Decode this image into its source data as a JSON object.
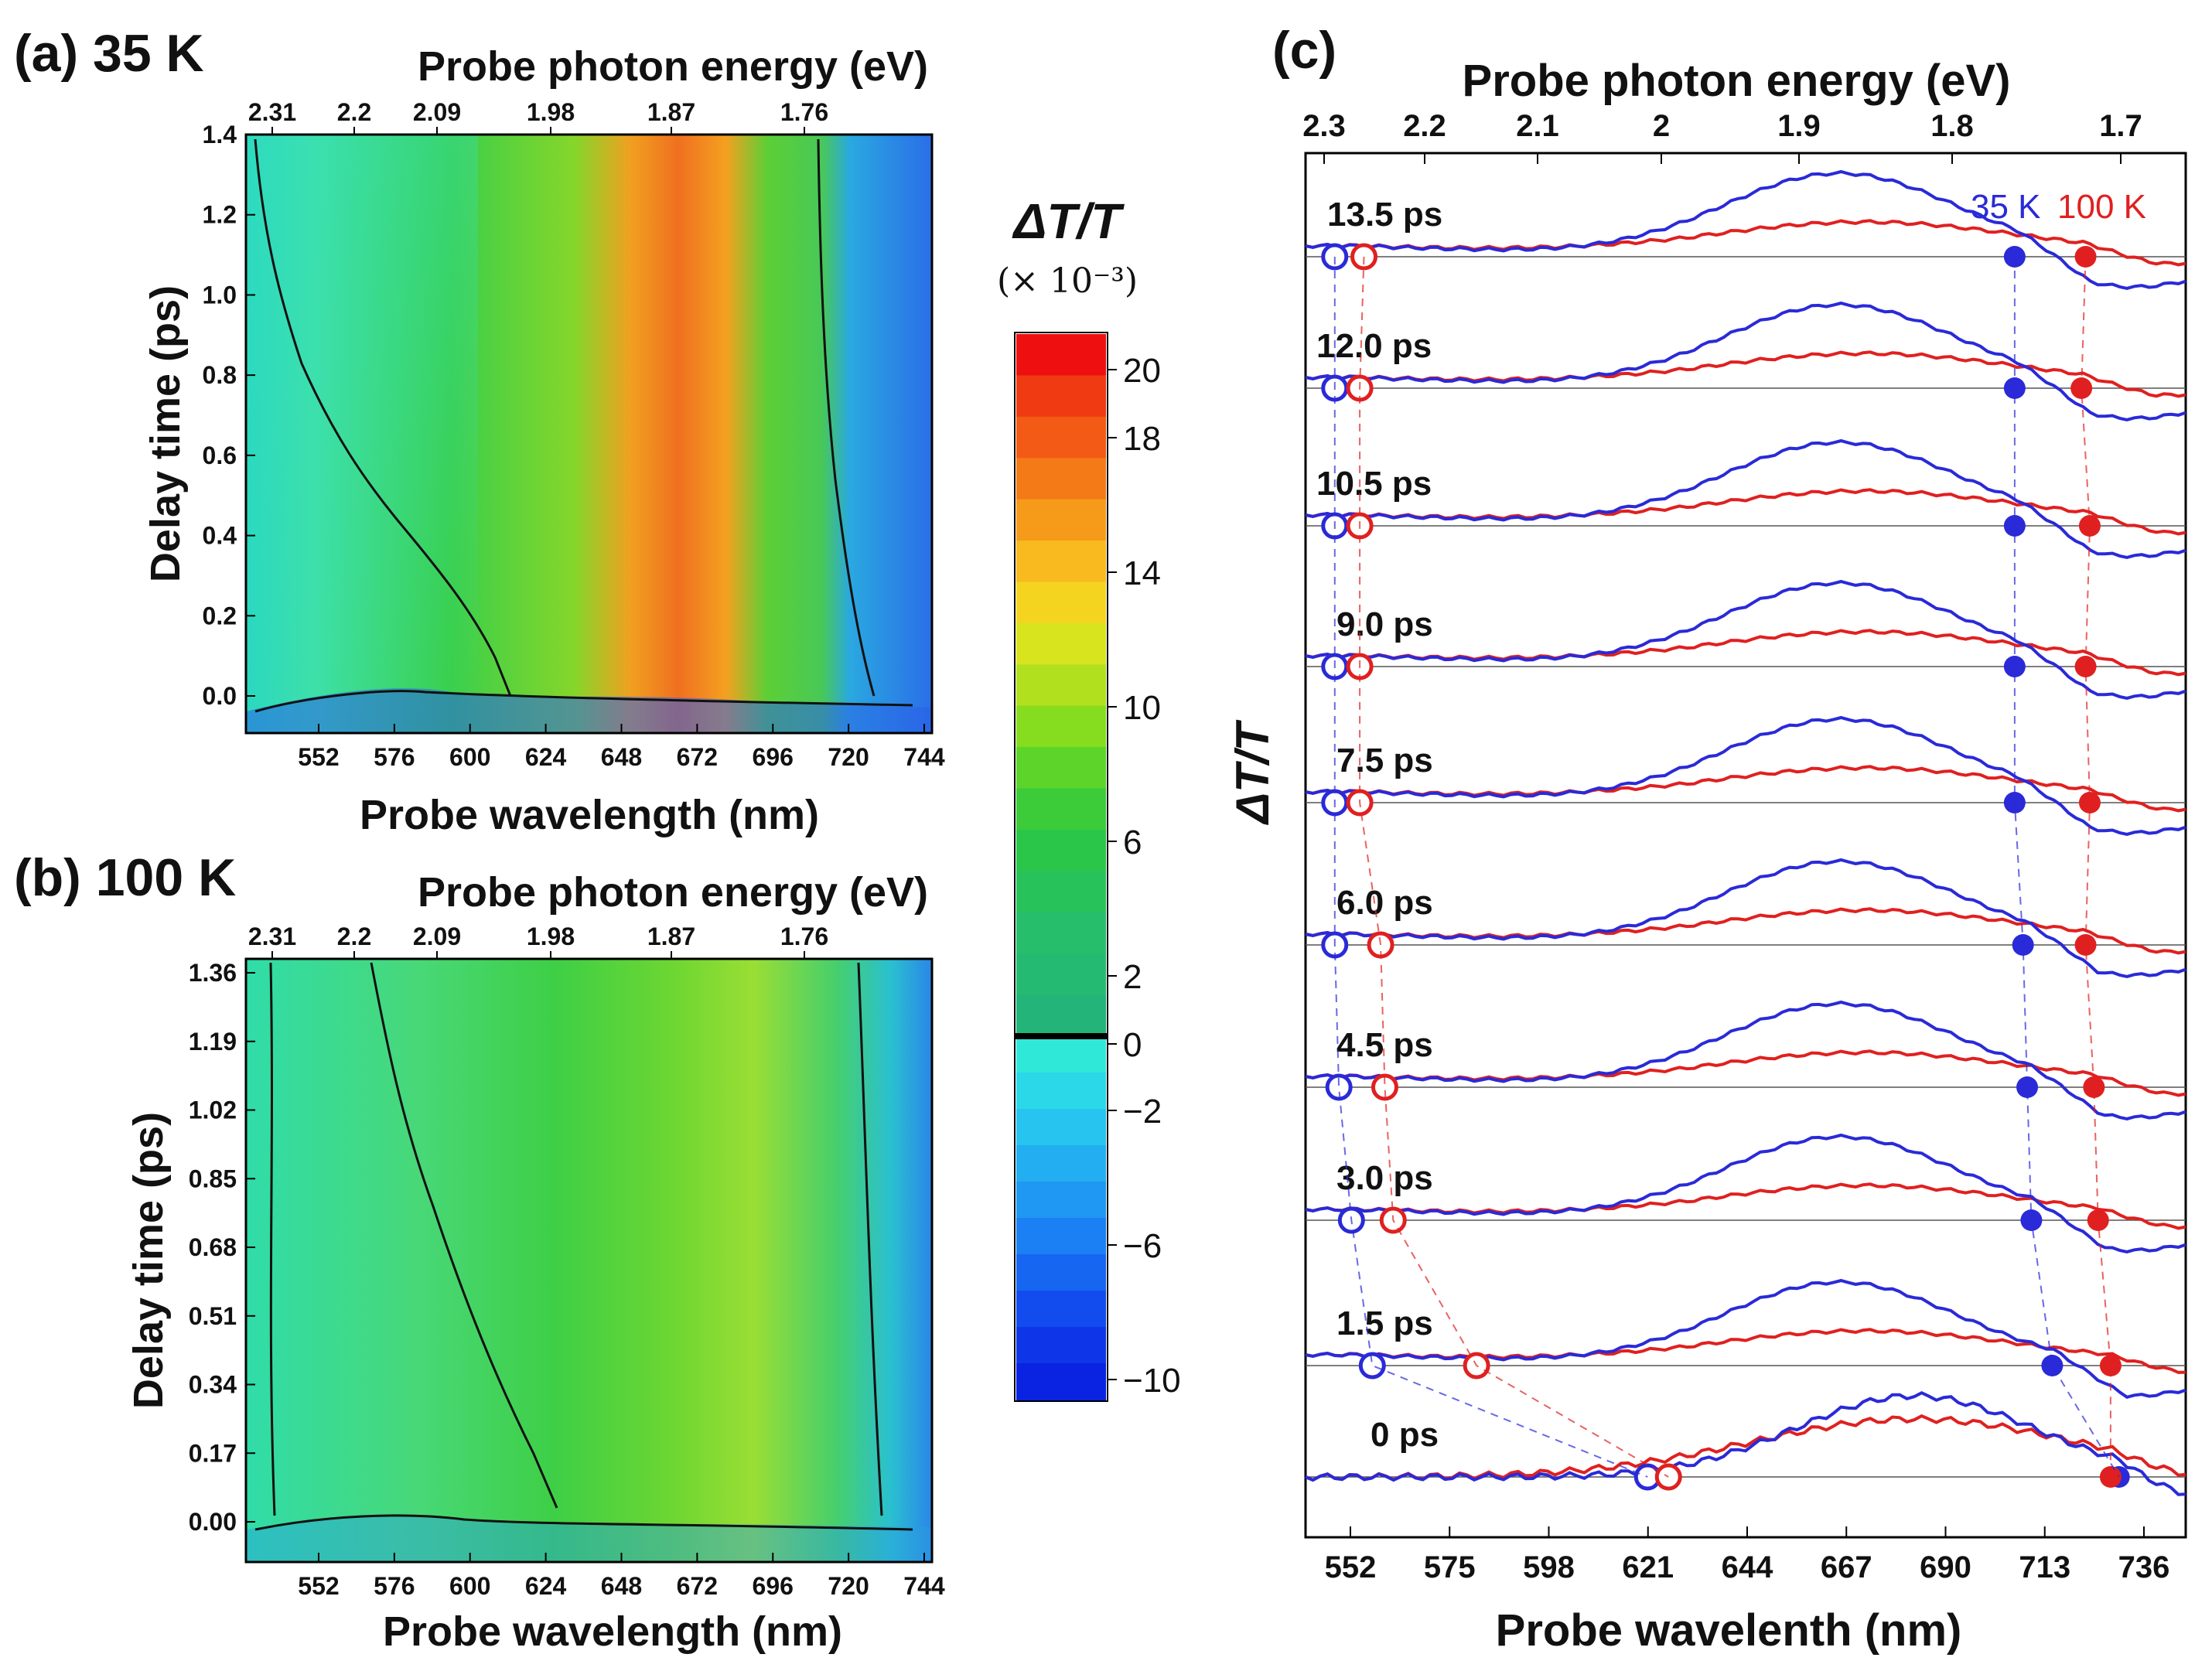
{
  "panels": {
    "a": {
      "label": "(a) 35 K",
      "top_axis_title": "Probe photon energy (eV)",
      "top_ticks": [
        "2.31",
        "2.2",
        "2.09",
        "1.98",
        "1.87",
        "1.76"
      ],
      "y_label": "Delay time (ps)",
      "y_ticks": [
        "0.0",
        "0.2",
        "0.4",
        "0.6",
        "0.8",
        "1.0",
        "1.2",
        "1.4"
      ],
      "x_label": "Probe wavelength (nm)",
      "x_ticks": [
        "552",
        "576",
        "600",
        "624",
        "648",
        "672",
        "696",
        "720",
        "744"
      ]
    },
    "b": {
      "label": "(b) 100 K",
      "top_axis_title": "Probe photon energy (eV)",
      "top_ticks": [
        "2.31",
        "2.2",
        "2.09",
        "1.98",
        "1.87",
        "1.76"
      ],
      "y_label": "Delay time (ps)",
      "y_ticks": [
        "0.00",
        "0.17",
        "0.34",
        "0.51",
        "0.68",
        "0.85",
        "1.02",
        "1.19",
        "1.36"
      ],
      "x_label": "Probe wavelength (nm)",
      "x_ticks": [
        "552",
        "576",
        "600",
        "624",
        "648",
        "672",
        "696",
        "720",
        "744"
      ]
    },
    "c": {
      "label": "(c)",
      "top_axis_title": "Probe photon energy (eV)",
      "top_ticks": [
        "2.3",
        "2.2",
        "2.1",
        "2",
        "1.9",
        "1.8",
        "1.7"
      ],
      "y_label": "ΔT/T",
      "x_label": "Probe wavelenth (nm)",
      "x_ticks": [
        "552",
        "575",
        "598",
        "621",
        "644",
        "667",
        "690",
        "713",
        "736"
      ],
      "legend_35k": "35 K",
      "legend_100k": "100 K"
    }
  },
  "colorbar": {
    "title": "ΔT/T",
    "unit": "(× 10⁻³)",
    "ticks": [
      "20",
      "18",
      "14",
      "10",
      "6",
      "2",
      "0",
      "−2",
      "−6",
      "−10"
    ]
  },
  "colors": {
    "blue_35k": "#2a2ad8",
    "red_100k": "#e02020"
  },
  "chart_data": [
    {
      "type": "heatmap",
      "panel": "a",
      "title": "35 K",
      "xlabel": "Probe wavelength (nm)",
      "ylabel": "Delay time (ps)",
      "xlim": [
        530,
        750
      ],
      "ylim": [
        -0.1,
        1.4
      ],
      "zlabel": "ΔT/T (×10⁻³)",
      "zlim": [
        -12,
        22
      ],
      "bands": [
        {
          "wavelength_nm": 540,
          "value": -1
        },
        {
          "wavelength_nm": 610,
          "value": 4
        },
        {
          "wavelength_nm": 650,
          "value": 10
        },
        {
          "wavelength_nm": 672,
          "value": 17
        },
        {
          "wavelength_nm": 700,
          "value": 6
        },
        {
          "wavelength_nm": 720,
          "value": -4
        },
        {
          "wavelength_nm": 744,
          "value": -7
        }
      ]
    },
    {
      "type": "heatmap",
      "panel": "b",
      "title": "100 K",
      "xlabel": "Probe wavelength (nm)",
      "ylabel": "Delay time (ps)",
      "xlim": [
        530,
        750
      ],
      "ylim": [
        -0.08,
        1.38
      ],
      "zlabel": "ΔT/T (×10⁻³)",
      "zlim": [
        -12,
        22
      ],
      "bands": [
        {
          "wavelength_nm": 540,
          "value": 0
        },
        {
          "wavelength_nm": 620,
          "value": 4
        },
        {
          "wavelength_nm": 660,
          "value": 8
        },
        {
          "wavelength_nm": 690,
          "value": 9
        },
        {
          "wavelength_nm": 730,
          "value": -2
        },
        {
          "wavelength_nm": 744,
          "value": -5
        }
      ]
    },
    {
      "type": "line",
      "panel": "c",
      "xlabel": "Probe wavelenth (nm)",
      "ylabel": "ΔT/T",
      "xlim": [
        534,
        745
      ],
      "delay_labels": [
        "13.5 ps",
        "12.0 ps",
        "10.5 ps",
        "9.0 ps",
        "7.5 ps",
        "6.0 ps",
        "4.5 ps",
        "3.0 ps",
        "1.5 ps",
        "0 ps"
      ],
      "series": [
        {
          "name": "35 K",
          "peak_nm": 662,
          "zero_crossing_short_nm": [
            541,
            541,
            541,
            541,
            541,
            541,
            542,
            545,
            550,
            616
          ],
          "zero_crossing_long_nm": [
            704,
            704,
            704,
            704,
            704,
            706,
            707,
            708,
            713,
            729
          ]
        },
        {
          "name": "100 K",
          "peak_nm": 668,
          "zero_crossing_short_nm": [
            548,
            547,
            547,
            547,
            547,
            552,
            553,
            555,
            575,
            621
          ],
          "zero_crossing_long_nm": [
            721,
            720,
            722,
            721,
            722,
            721,
            723,
            724,
            727,
            727
          ]
        }
      ]
    }
  ]
}
